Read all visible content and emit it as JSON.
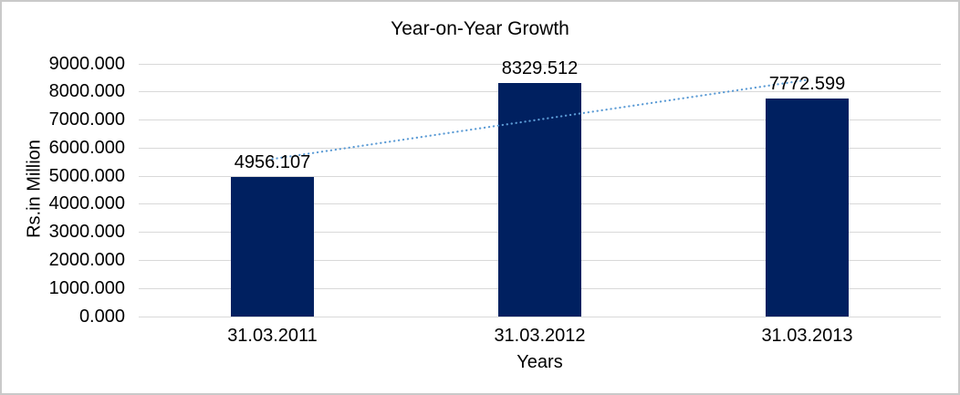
{
  "chart_data": {
    "type": "bar",
    "title": "Year-on-Year Growth",
    "xlabel": "Years",
    "ylabel": "Rs.in Million",
    "categories": [
      "31.03.2011",
      "31.03.2012",
      "31.03.2013"
    ],
    "values": [
      4956.107,
      8329.512,
      7772.599
    ],
    "data_labels": [
      "4956.107",
      "8329.512",
      "7772.599"
    ],
    "ylim": [
      0,
      9000
    ],
    "y_tick_step": 1000,
    "y_tick_labels": [
      "0.000",
      "1000.000",
      "2000.000",
      "3000.000",
      "4000.000",
      "5000.000",
      "6000.000",
      "7000.000",
      "8000.000",
      "9000.000"
    ],
    "grid": true,
    "legend": "none",
    "trendline": {
      "type": "linear",
      "style": "dotted",
      "color": "#5B9BD5"
    },
    "colors": {
      "bar": "#002060",
      "gridline": "#D9D9D9",
      "text": "#000000",
      "background": "#FFFFFF",
      "border": "#C9C9C9"
    }
  }
}
